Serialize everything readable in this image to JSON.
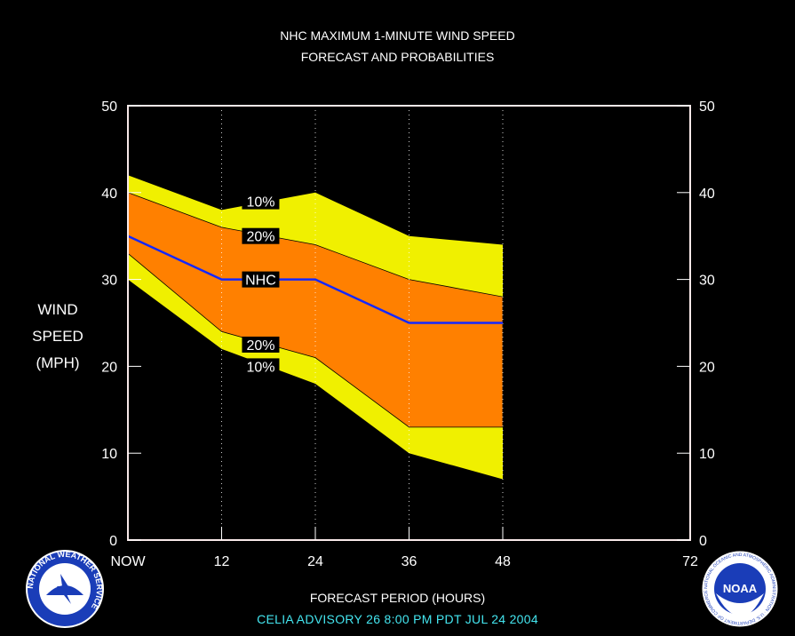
{
  "title_line1": "NHC MAXIMUM 1-MINUTE WIND SPEED",
  "title_line2": "FORECAST AND PROBABILITIES",
  "ylabel_lines": [
    "WIND",
    "SPEED",
    "(MPH)"
  ],
  "xlabel": "FORECAST PERIOD (HOURS)",
  "footer": "CELIA    ADVISORY  26  8:00  PM  PDT  JUL 24  2004",
  "logos": {
    "left_text": "NATIONAL WEATHER SERVICE",
    "right_text": "NATIONAL OCEANIC AND ATMOSPHERIC ADMINISTRATION · U.S. DEPARTMENT OF COMMERCE",
    "right_center": "NOAA"
  },
  "colors": {
    "background": "#000000",
    "band_10": "#f0f000",
    "band_20": "#ff8000",
    "nhc_line": "#1428ff",
    "axis_frame": "#f8e8e8",
    "footer_text": "#44e6f0"
  },
  "chart_data": {
    "type": "area",
    "x": [
      0,
      12,
      24,
      36,
      48
    ],
    "xlim": [
      0,
      72
    ],
    "xticks": [
      0,
      12,
      24,
      36,
      48,
      72
    ],
    "xtick_labels": [
      "NOW",
      "12",
      "24",
      "36",
      "48",
      "72"
    ],
    "ylim": [
      0,
      50
    ],
    "yticks": [
      0,
      10,
      20,
      30,
      40,
      50
    ],
    "grid_vertical_dotted_at": [
      12,
      24,
      36,
      48
    ],
    "series": [
      {
        "name": "10%",
        "upper": [
          42,
          38,
          40,
          35,
          34
        ],
        "lower": [
          30,
          22,
          18,
          10,
          7
        ]
      },
      {
        "name": "20%",
        "upper": [
          40,
          36,
          34,
          30,
          28
        ],
        "lower": [
          33,
          24,
          21,
          13,
          13
        ]
      },
      {
        "name": "NHC",
        "values": [
          35,
          30,
          30,
          25,
          25
        ]
      }
    ],
    "labels": [
      {
        "text": "10%",
        "x": 17,
        "y": 39
      },
      {
        "text": "20%",
        "x": 17,
        "y": 35
      },
      {
        "text": "NHC",
        "x": 17,
        "y": 30
      },
      {
        "text": "20%",
        "x": 17,
        "y": 22.5
      },
      {
        "text": "10%",
        "x": 17,
        "y": 20
      }
    ]
  }
}
